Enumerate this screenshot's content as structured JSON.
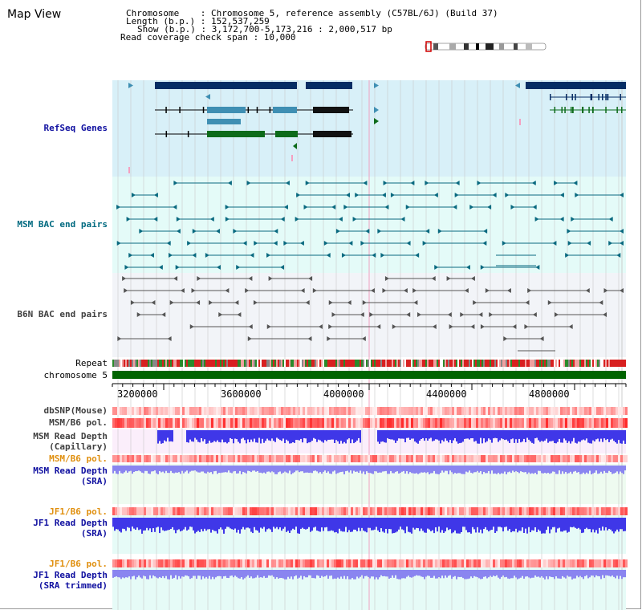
{
  "title": "Map View",
  "info": {
    "chromosome": "Chromosome    : Chromosome 5, reference assembly (C57BL/6J) (Build 37)",
    "length": "Length (b.p.) : 152,537,259",
    "show": "Show (b.p.) : 3,172,700-5,173,216 : 2,000,517 bp",
    "span": "Read coverage check span : 10,000"
  },
  "tracks": {
    "refseq": "RefSeq Genes",
    "msm_bac": "MSM BAC end pairs",
    "b6n_bac": "B6N BAC end pairs",
    "repeat": "Repeat",
    "chromosome": "chromosome 5",
    "dbsnp": "dbSNP(Mouse)",
    "msm_b6_pol": "MSM/B6 pol.",
    "msm_depth_cap_1": "MSM Read Depth",
    "msm_depth_cap_2": "(Capillary)",
    "msm_b6_pol_2": "MSM/B6 pol.",
    "msm_depth_sra_1": "MSM Read Depth",
    "msm_depth_sra_2": "(SRA)",
    "jf1_b6_pol": "JF1/B6 pol.",
    "jf1_depth_1": "JF1 Read Depth",
    "jf1_depth_2": "(SRA)",
    "jf1_b6_pol_2": "JF1/B6 pol.",
    "jf1_trim_1": "JF1 Read Depth",
    "jf1_trim_2": "(SRA trimmed)"
  },
  "axis": {
    "ticks": [
      "3200000",
      "3600000",
      "4000000",
      "4400000",
      "4800000"
    ]
  },
  "colors": {
    "refseq_bg": "#d8f0f8",
    "msm_bg": "#e4fbf8",
    "b6n_bg": "#f2f4f8",
    "gene_dark": "#062d64",
    "gene_mid": "#3f8fb3",
    "gene_green": "#0d6b1a",
    "msm_bac": "#0a6a80",
    "b6n_bac": "#555555",
    "chromosome": "#006400",
    "depth": "#3f37e8",
    "depth_light": "#8a85f0"
  }
}
